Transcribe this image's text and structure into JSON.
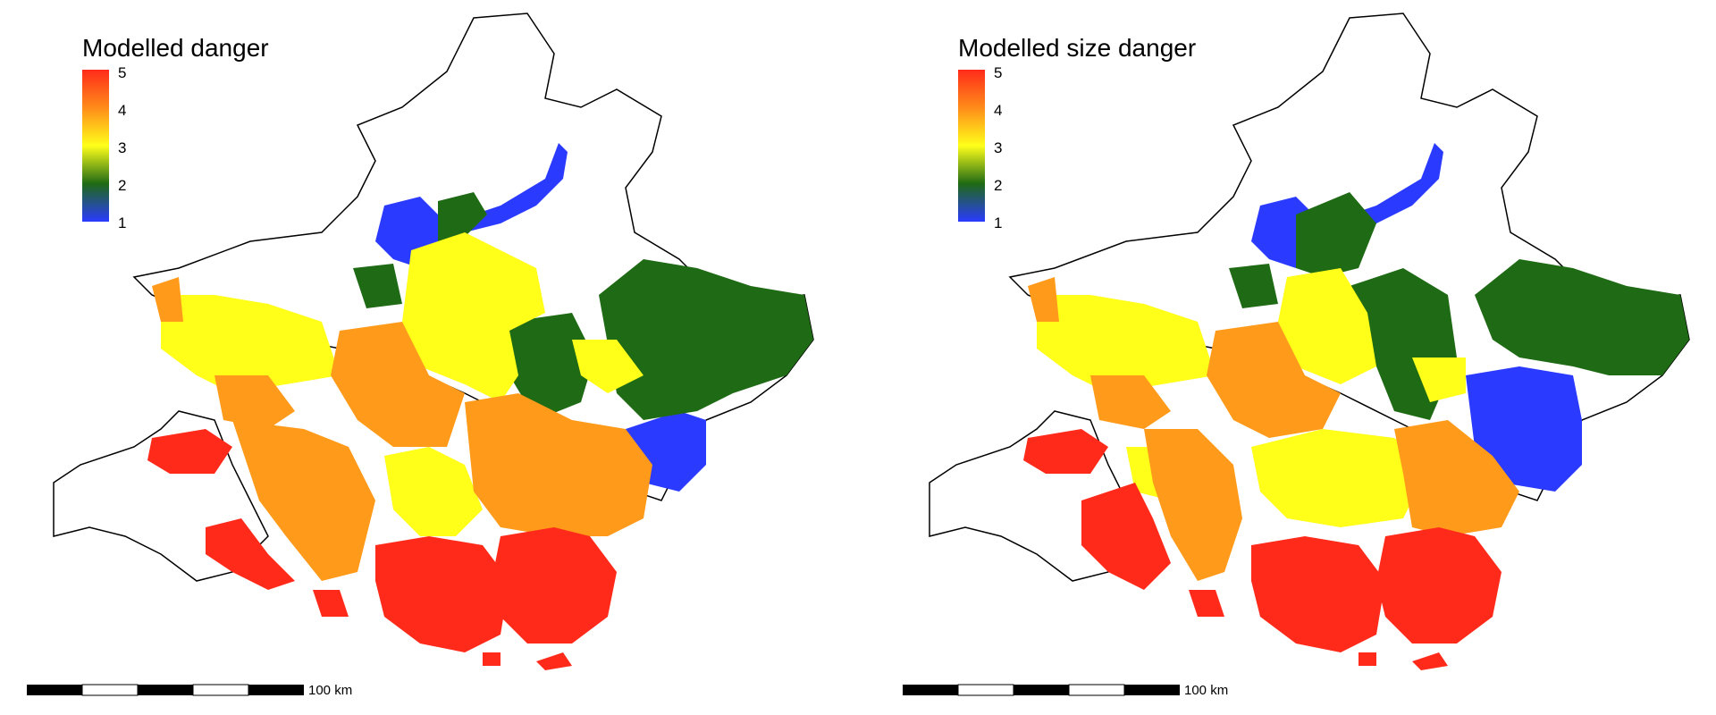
{
  "panels": [
    {
      "legend_title": "Modelled danger",
      "scale_label": "100 km"
    },
    {
      "legend_title": "Modelled size danger",
      "scale_label": "100 km"
    }
  ],
  "legend": {
    "ticks": [
      "5",
      "4",
      "3",
      "2",
      "1"
    ],
    "colors": {
      "5": "#ff2a1a",
      "4": "#ff9a1a",
      "3": "#ffff1a",
      "2": "#1f6a14",
      "1": "#2a3aff"
    }
  },
  "colors": {
    "outline": "#000000",
    "very_high": "#ff2a1a",
    "high": "#ff9a1a",
    "medium": "#ffff1a",
    "low": "#1f6a14",
    "very_low": "#2a3aff"
  }
}
